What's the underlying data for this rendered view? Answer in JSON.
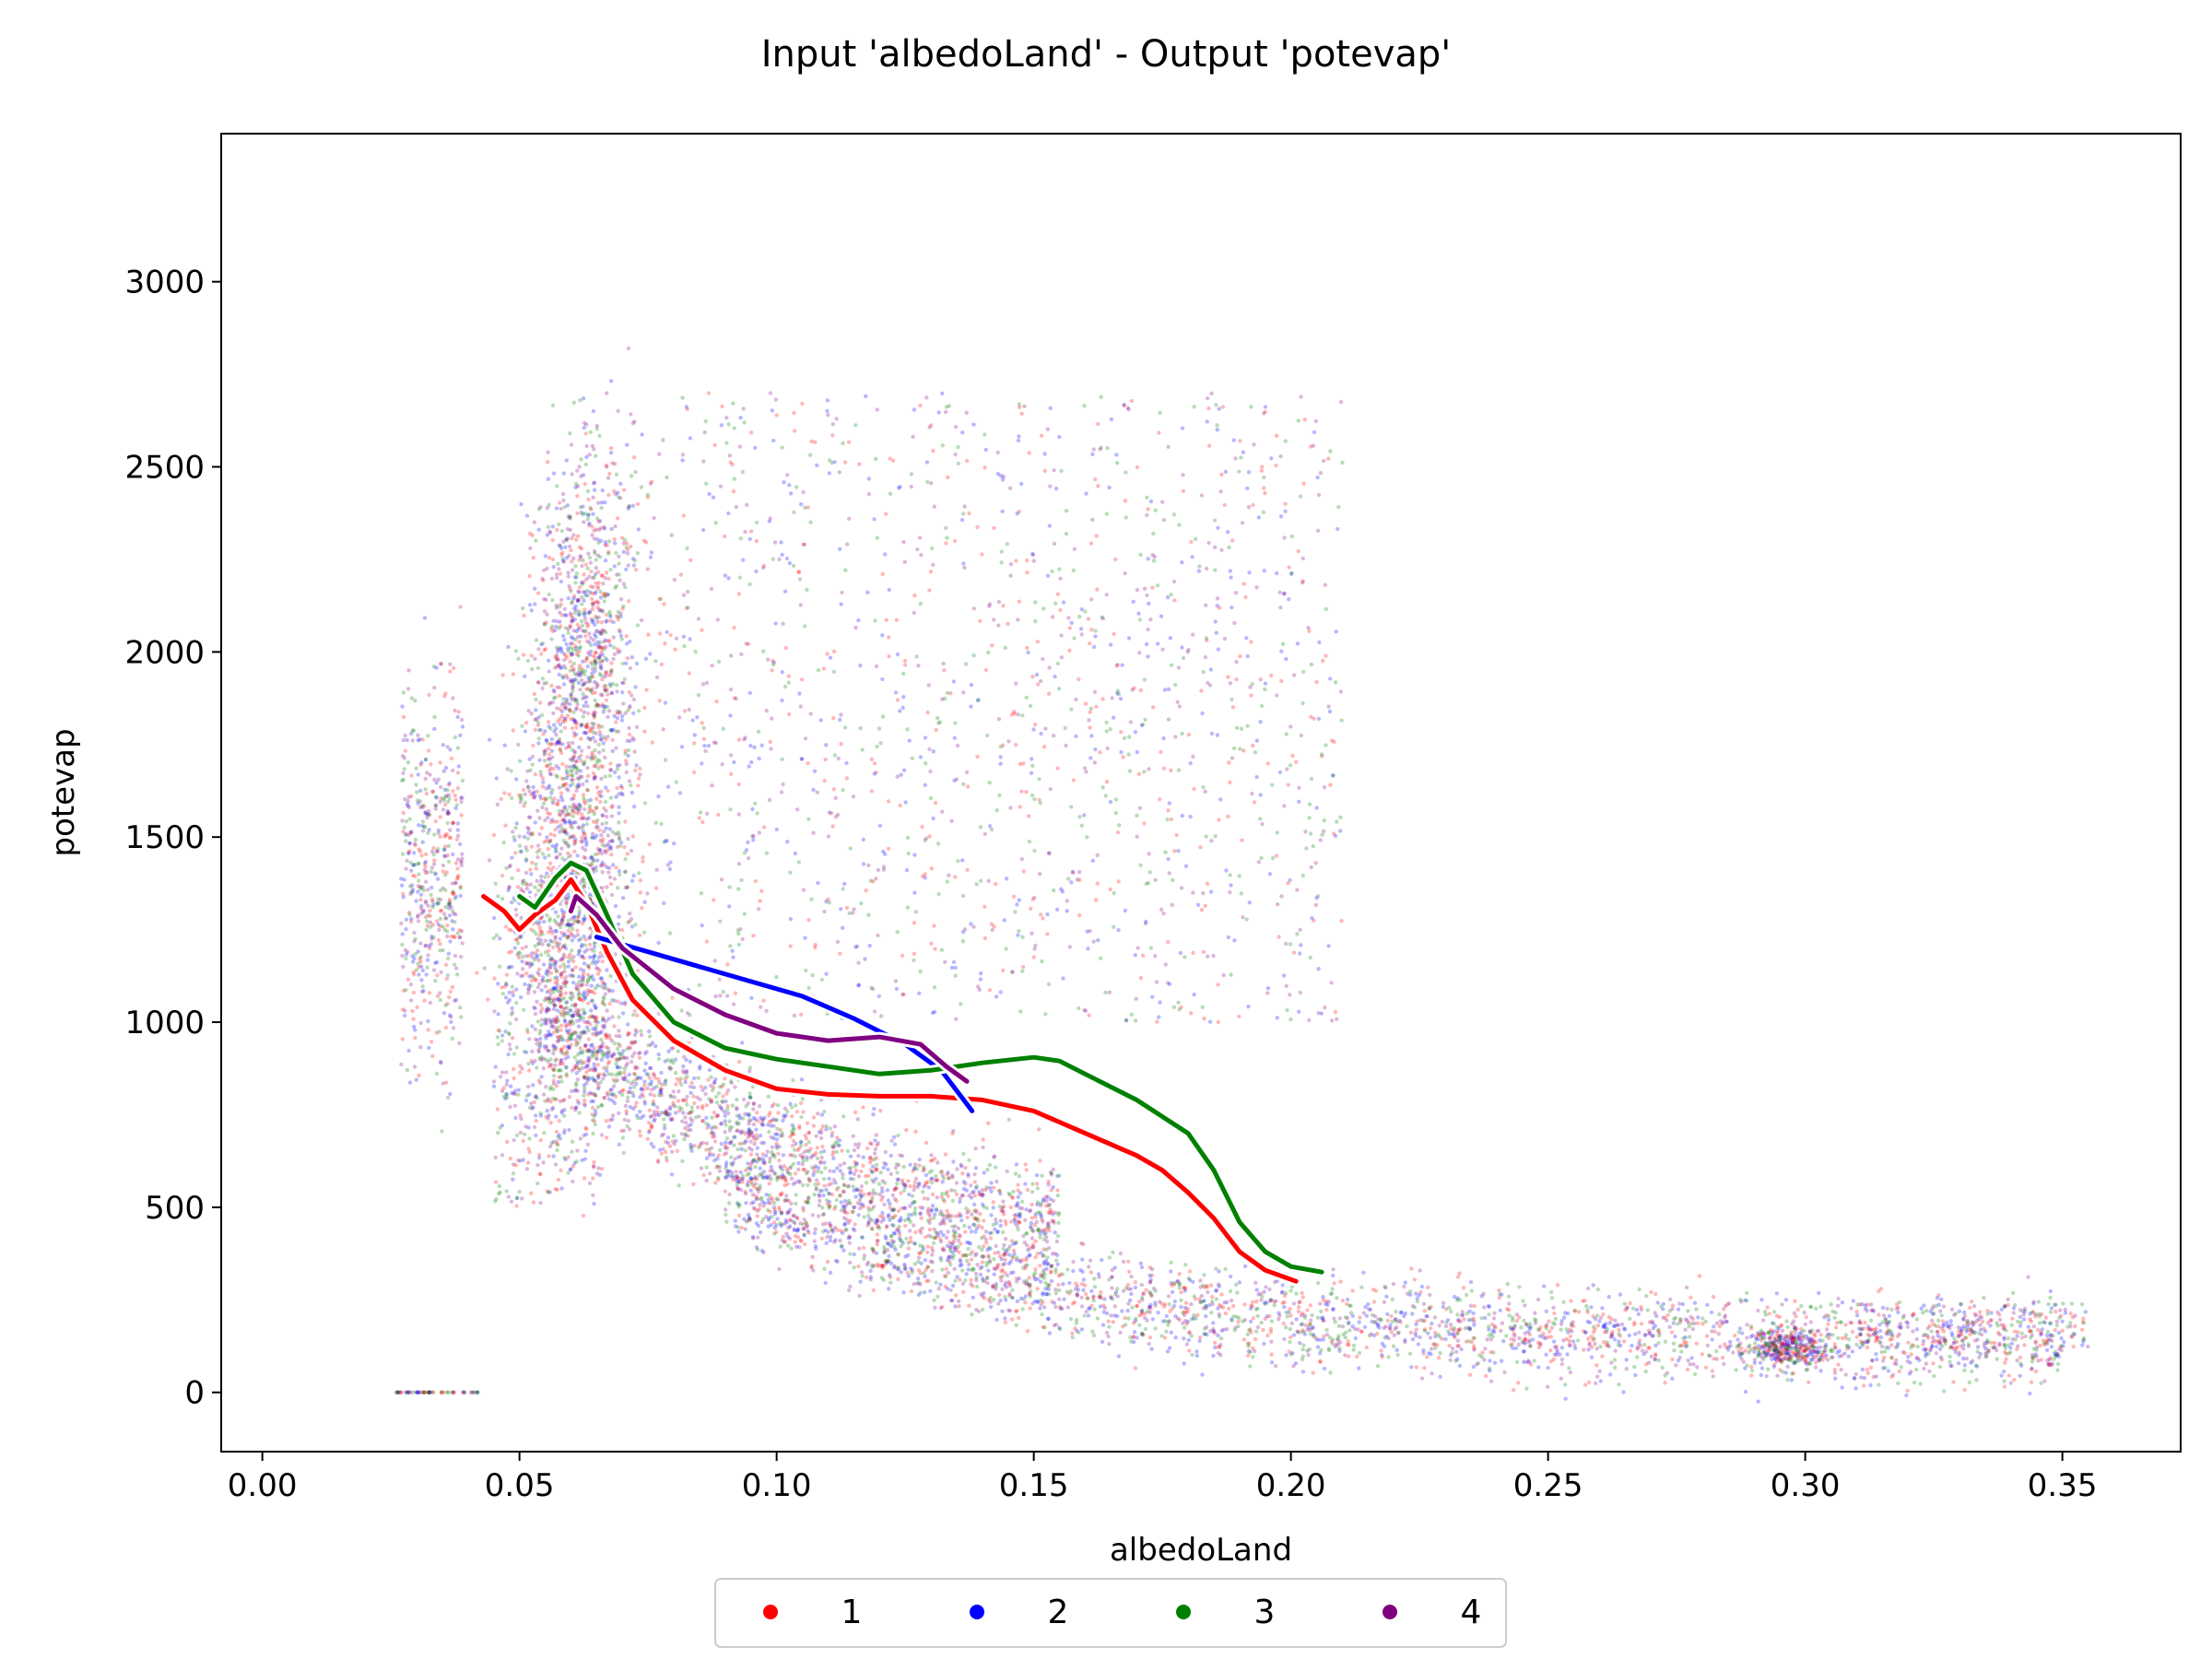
{
  "chart_data": {
    "type": "scatter",
    "title": "Input 'albedoLand' - Output 'potevap'",
    "xlabel": "albedoLand",
    "ylabel": "potevap",
    "xlim": [
      -0.008,
      0.373
    ],
    "ylim": [
      -160,
      3400
    ],
    "xticks": [
      0.0,
      0.05,
      0.1,
      0.15,
      0.2,
      0.25,
      0.3,
      0.35
    ],
    "xtick_labels": [
      "0.00",
      "0.05",
      "0.10",
      "0.15",
      "0.20",
      "0.25",
      "0.30",
      "0.35"
    ],
    "yticks": [
      0,
      500,
      1000,
      1500,
      2000,
      2500,
      3000
    ],
    "ytick_labels": [
      "0",
      "500",
      "1000",
      "1500",
      "2000",
      "2500",
      "3000"
    ],
    "grid": false,
    "legend_placement": "bottom-center",
    "series": [
      {
        "name": "1",
        "color": "#ff0000",
        "trend": [
          [
            0.043,
            1340
          ],
          [
            0.047,
            1300
          ],
          [
            0.05,
            1250
          ],
          [
            0.053,
            1290
          ],
          [
            0.057,
            1330
          ],
          [
            0.06,
            1385
          ],
          [
            0.063,
            1320
          ],
          [
            0.067,
            1190
          ],
          [
            0.072,
            1060
          ],
          [
            0.08,
            950
          ],
          [
            0.09,
            870
          ],
          [
            0.1,
            820
          ],
          [
            0.11,
            805
          ],
          [
            0.12,
            800
          ],
          [
            0.13,
            800
          ],
          [
            0.14,
            790
          ],
          [
            0.15,
            760
          ],
          [
            0.16,
            700
          ],
          [
            0.17,
            640
          ],
          [
            0.175,
            600
          ],
          [
            0.18,
            540
          ],
          [
            0.185,
            470
          ],
          [
            0.19,
            380
          ],
          [
            0.195,
            330
          ],
          [
            0.201,
            300
          ]
        ]
      },
      {
        "name": "2",
        "color": "#0000ff",
        "trend": [
          [
            0.065,
            1230
          ],
          [
            0.075,
            1190
          ],
          [
            0.085,
            1150
          ],
          [
            0.095,
            1110
          ],
          [
            0.105,
            1070
          ],
          [
            0.115,
            1010
          ],
          [
            0.125,
            940
          ],
          [
            0.132,
            870
          ],
          [
            0.138,
            760
          ]
        ]
      },
      {
        "name": "3",
        "color": "#008000",
        "trend": [
          [
            0.05,
            1340
          ],
          [
            0.053,
            1310
          ],
          [
            0.057,
            1390
          ],
          [
            0.06,
            1430
          ],
          [
            0.063,
            1410
          ],
          [
            0.067,
            1290
          ],
          [
            0.072,
            1130
          ],
          [
            0.08,
            1000
          ],
          [
            0.09,
            930
          ],
          [
            0.1,
            900
          ],
          [
            0.11,
            880
          ],
          [
            0.12,
            860
          ],
          [
            0.13,
            870
          ],
          [
            0.14,
            890
          ],
          [
            0.15,
            905
          ],
          [
            0.155,
            895
          ],
          [
            0.16,
            860
          ],
          [
            0.17,
            790
          ],
          [
            0.18,
            700
          ],
          [
            0.185,
            600
          ],
          [
            0.19,
            460
          ],
          [
            0.195,
            380
          ],
          [
            0.2,
            340
          ],
          [
            0.206,
            325
          ]
        ]
      },
      {
        "name": "4",
        "color": "#800080",
        "trend": [
          [
            0.06,
            1300
          ],
          [
            0.061,
            1340
          ],
          [
            0.065,
            1290
          ],
          [
            0.07,
            1200
          ],
          [
            0.08,
            1090
          ],
          [
            0.09,
            1020
          ],
          [
            0.1,
            970
          ],
          [
            0.11,
            950
          ],
          [
            0.12,
            960
          ],
          [
            0.128,
            940
          ],
          [
            0.133,
            880
          ],
          [
            0.137,
            840
          ]
        ]
      }
    ]
  },
  "legend": {
    "items": [
      {
        "label": "1",
        "color": "#ff0000"
      },
      {
        "label": "2",
        "color": "#0000ff"
      },
      {
        "label": "3",
        "color": "#008000"
      },
      {
        "label": "4",
        "color": "#800080"
      }
    ]
  }
}
